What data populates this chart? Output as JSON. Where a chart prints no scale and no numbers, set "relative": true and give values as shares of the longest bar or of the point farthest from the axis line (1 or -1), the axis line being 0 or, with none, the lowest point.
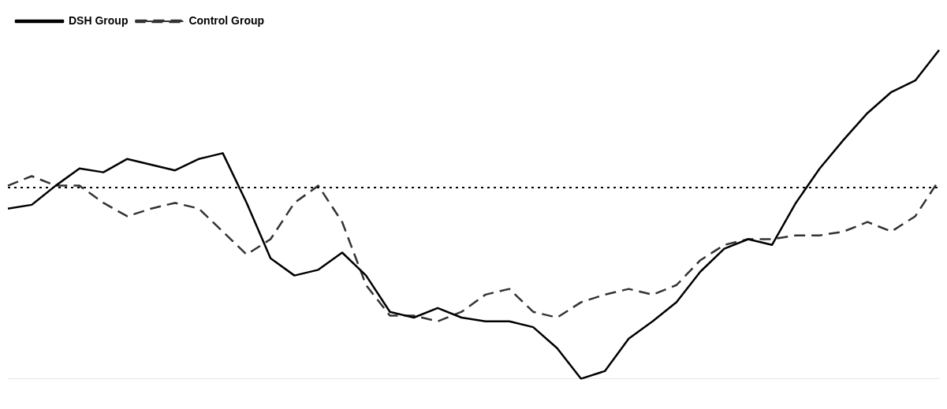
{
  "chart_data": {
    "type": "line",
    "relative": true,
    "legend": "top left",
    "marker": "none",
    "categories": [
      null,
      null,
      null,
      null,
      null,
      null,
      null,
      null,
      null,
      null,
      null,
      null,
      null,
      null,
      null,
      null,
      null,
      null,
      null,
      null,
      null,
      null,
      null,
      null,
      null,
      null,
      null,
      null,
      null,
      null,
      null,
      null,
      null,
      null,
      null,
      null,
      null,
      null,
      null,
      null
    ],
    "series": [
      {
        "name": "DSH Group",
        "color": "#000000",
        "line_style": "solid",
        "values": [
          -0.11,
          -0.09,
          0.01,
          0.1,
          0.08,
          0.15,
          0.12,
          0.09,
          0.15,
          0.18,
          -0.08,
          -0.37,
          -0.46,
          -0.43,
          -0.34,
          -0.46,
          -0.65,
          -0.68,
          -0.63,
          -0.68,
          -0.7,
          -0.7,
          -0.73,
          -0.84,
          -1,
          -0.96,
          -0.79,
          -0.7,
          -0.6,
          -0.44,
          -0.32,
          -0.27,
          -0.3,
          -0.08,
          0.1,
          0.25,
          0.39,
          0.5,
          0.56,
          0.72
        ]
      },
      {
        "name": "Control Group",
        "color": "#333333",
        "line_style": "dashed",
        "values": [
          0.01,
          0.06,
          0.01,
          0.01,
          -0.08,
          -0.15,
          -0.11,
          -0.08,
          -0.11,
          -0.23,
          -0.35,
          -0.27,
          -0.08,
          0.01,
          -0.18,
          -0.51,
          -0.67,
          -0.67,
          -0.7,
          -0.65,
          -0.56,
          -0.53,
          -0.65,
          -0.68,
          -0.6,
          -0.56,
          -0.53,
          -0.56,
          -0.51,
          -0.38,
          -0.3,
          -0.27,
          -0.27,
          -0.25,
          -0.25,
          -0.23,
          -0.18,
          -0.23,
          -0.15,
          0.04
        ]
      }
    ],
    "ref_lines": [
      {
        "axis": "y",
        "value": 0,
        "line_style": "dotted",
        "color": "#000000"
      }
    ]
  }
}
